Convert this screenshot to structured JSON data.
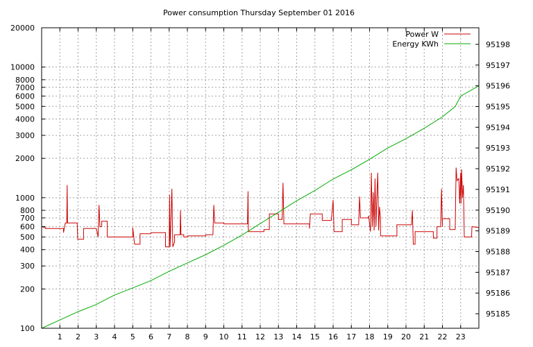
{
  "chart_data": {
    "type": "line",
    "title": "Power consumption Thursday September 01 2016",
    "x_range": [
      0,
      24
    ],
    "x_ticks": [
      1,
      2,
      3,
      4,
      5,
      6,
      7,
      8,
      9,
      10,
      11,
      12,
      13,
      14,
      15,
      16,
      17,
      18,
      19,
      20,
      21,
      22,
      23
    ],
    "y_left": {
      "scale": "log",
      "range": [
        100,
        20000
      ],
      "ticks": [
        100,
        200,
        300,
        400,
        500,
        600,
        700,
        800,
        1000,
        2000,
        3000,
        4000,
        5000,
        6000,
        7000,
        8000,
        10000,
        20000
      ]
    },
    "y_right": {
      "scale": "linear",
      "range": [
        95184.3,
        95198.8
      ],
      "ticks": [
        95185,
        95186,
        95187,
        95188,
        95189,
        95190,
        95191,
        95192,
        95193,
        95194,
        95195,
        95196,
        95197,
        95198
      ]
    },
    "grid": true,
    "legend_position": "top-right",
    "series": [
      {
        "name": "Power W",
        "axis": "left",
        "color": "#cc0000",
        "points": [
          [
            0.0,
            490
          ],
          [
            0.0,
            600
          ],
          [
            0.2,
            590
          ],
          [
            0.2,
            580
          ],
          [
            1.2,
            580
          ],
          [
            1.2,
            540
          ],
          [
            1.3,
            640
          ],
          [
            1.38,
            640
          ],
          [
            1.4,
            1250
          ],
          [
            1.42,
            640
          ],
          [
            1.95,
            640
          ],
          [
            1.98,
            480
          ],
          [
            2.3,
            480
          ],
          [
            2.3,
            580
          ],
          [
            3.0,
            580
          ],
          [
            3.1,
            500
          ],
          [
            3.15,
            880
          ],
          [
            3.2,
            600
          ],
          [
            3.3,
            600
          ],
          [
            3.3,
            660
          ],
          [
            3.6,
            660
          ],
          [
            3.6,
            500
          ],
          [
            5.0,
            500
          ],
          [
            5.0,
            590
          ],
          [
            5.1,
            440
          ],
          [
            5.4,
            440
          ],
          [
            5.4,
            530
          ],
          [
            6.0,
            530
          ],
          [
            6.0,
            540
          ],
          [
            6.8,
            540
          ],
          [
            6.8,
            420
          ],
          [
            7.0,
            420
          ],
          [
            7.02,
            1050
          ],
          [
            7.05,
            420
          ],
          [
            7.15,
            1170
          ],
          [
            7.2,
            420
          ],
          [
            7.3,
            460
          ],
          [
            7.3,
            520
          ],
          [
            7.6,
            520
          ],
          [
            7.62,
            800
          ],
          [
            7.65,
            520
          ],
          [
            7.8,
            520
          ],
          [
            7.8,
            500
          ],
          [
            8.0,
            500
          ],
          [
            8.0,
            510
          ],
          [
            9.0,
            510
          ],
          [
            9.0,
            520
          ],
          [
            9.4,
            520
          ],
          [
            9.45,
            880
          ],
          [
            9.5,
            640
          ],
          [
            10.0,
            640
          ],
          [
            10.0,
            630
          ],
          [
            11.3,
            630
          ],
          [
            11.33,
            1120
          ],
          [
            11.35,
            550
          ],
          [
            12.2,
            550
          ],
          [
            12.2,
            570
          ],
          [
            12.5,
            570
          ],
          [
            12.5,
            750
          ],
          [
            13.0,
            750
          ],
          [
            13.0,
            680
          ],
          [
            13.2,
            680
          ],
          [
            13.25,
            1300
          ],
          [
            13.3,
            630
          ],
          [
            14.7,
            630
          ],
          [
            14.7,
            580
          ],
          [
            14.75,
            750
          ],
          [
            15.4,
            750
          ],
          [
            15.4,
            670
          ],
          [
            15.9,
            670
          ],
          [
            16.0,
            960
          ],
          [
            16.05,
            550
          ],
          [
            16.5,
            550
          ],
          [
            16.5,
            680
          ],
          [
            17.0,
            680
          ],
          [
            17.0,
            620
          ],
          [
            17.4,
            620
          ],
          [
            17.45,
            1020
          ],
          [
            17.5,
            700
          ],
          [
            17.9,
            700
          ],
          [
            17.95,
            720
          ],
          [
            18.05,
            550
          ],
          [
            18.1,
            1550
          ],
          [
            18.15,
            600
          ],
          [
            18.2,
            1100
          ],
          [
            18.25,
            560
          ],
          [
            18.3,
            1400
          ],
          [
            18.35,
            600
          ],
          [
            18.4,
            1000
          ],
          [
            18.45,
            1550
          ],
          [
            18.5,
            560
          ],
          [
            18.55,
            850
          ],
          [
            18.6,
            700
          ],
          [
            18.6,
            510
          ],
          [
            19.5,
            510
          ],
          [
            19.5,
            620
          ],
          [
            20.3,
            620
          ],
          [
            20.35,
            800
          ],
          [
            20.4,
            440
          ],
          [
            20.5,
            440
          ],
          [
            20.5,
            550
          ],
          [
            21.5,
            550
          ],
          [
            21.5,
            490
          ],
          [
            21.7,
            490
          ],
          [
            21.7,
            600
          ],
          [
            21.9,
            600
          ],
          [
            21.95,
            1170
          ],
          [
            22.0,
            600
          ],
          [
            22.0,
            690
          ],
          [
            22.4,
            690
          ],
          [
            22.4,
            570
          ],
          [
            22.7,
            570
          ],
          [
            22.75,
            1700
          ],
          [
            22.8,
            1350
          ],
          [
            22.9,
            1400
          ],
          [
            22.95,
            900
          ],
          [
            23.0,
            1550
          ],
          [
            23.02,
            900
          ],
          [
            23.05,
            1650
          ],
          [
            23.08,
            1300
          ],
          [
            23.1,
            1000
          ],
          [
            23.15,
            1250
          ],
          [
            23.2,
            500
          ],
          [
            23.6,
            500
          ],
          [
            23.62,
            600
          ],
          [
            24.0,
            590
          ]
        ]
      },
      {
        "name": "Energy KWh",
        "axis": "right",
        "color": "#00aa00",
        "points": [
          [
            0.0,
            95184.3
          ],
          [
            1.0,
            95184.7
          ],
          [
            2.0,
            95185.1
          ],
          [
            3.0,
            95185.45
          ],
          [
            4.0,
            95185.9
          ],
          [
            5.0,
            95186.25
          ],
          [
            6.0,
            95186.6
          ],
          [
            7.0,
            95187.05
          ],
          [
            8.0,
            95187.45
          ],
          [
            9.0,
            95187.85
          ],
          [
            10.0,
            95188.3
          ],
          [
            11.0,
            95188.8
          ],
          [
            12.0,
            95189.35
          ],
          [
            13.0,
            95189.9
          ],
          [
            14.0,
            95190.45
          ],
          [
            15.0,
            95190.95
          ],
          [
            16.0,
            95191.5
          ],
          [
            17.0,
            95191.95
          ],
          [
            18.0,
            95192.45
          ],
          [
            19.0,
            95193.0
          ],
          [
            20.0,
            95193.45
          ],
          [
            21.0,
            95193.95
          ],
          [
            22.0,
            95194.5
          ],
          [
            22.7,
            95195.0
          ],
          [
            23.0,
            95195.5
          ],
          [
            24.0,
            95196.0
          ]
        ]
      }
    ]
  }
}
